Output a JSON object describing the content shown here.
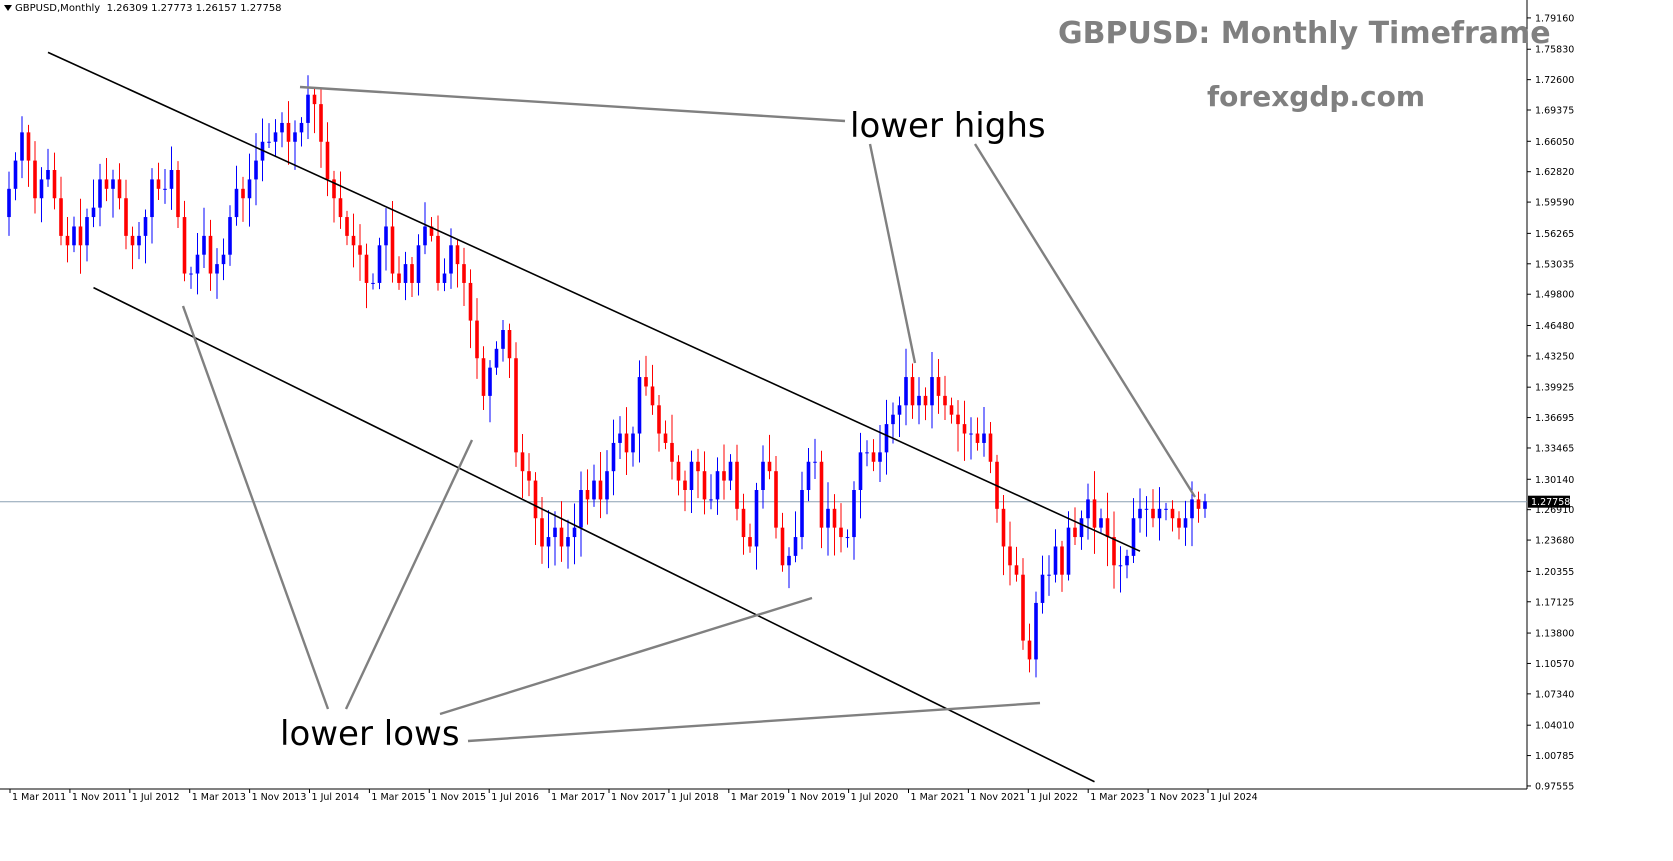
{
  "header": {
    "symbol": "GBPUSD,Monthly",
    "ohlc": "1.26309 1.27773 1.26157 1.27758"
  },
  "titles": {
    "main": "GBPUSD: Monthly Timeframe",
    "site": "forexgdp.com"
  },
  "annotations": {
    "highs": "lower highs",
    "lows": "lower lows"
  },
  "colors": {
    "bull": "#0000ff",
    "bear": "#ff0000",
    "channel": "#000000",
    "pointer": "#808080",
    "price_line": "#8ca0b4",
    "title": "#808080"
  },
  "chart_data": {
    "type": "candlestick",
    "title": "GBPUSD: Monthly Timeframe",
    "ylim": [
      0.9755,
      1.8
    ],
    "y_ticks": [
      "1.79160",
      "1.75830",
      "1.72600",
      "1.69375",
      "1.66050",
      "1.62820",
      "1.59590",
      "1.56265",
      "1.53035",
      "1.49800",
      "1.46480",
      "1.43250",
      "1.39925",
      "1.36695",
      "1.33465",
      "1.30140",
      "1.26910",
      "1.23680",
      "1.20355",
      "1.17125",
      "1.13800",
      "1.10570",
      "1.07340",
      "1.04010",
      "1.00785",
      "0.97555"
    ],
    "x_ticks": [
      "1 Mar 2011",
      "1 Nov 2011",
      "1 Jul 2012",
      "1 Mar 2013",
      "1 Nov 2013",
      "1 Jul 2014",
      "1 Mar 2015",
      "1 Nov 2015",
      "1 Jul 2016",
      "1 Mar 2017",
      "1 Nov 2017",
      "1 Jul 2018",
      "1 Mar 2019",
      "1 Nov 2019",
      "1 Jul 2020",
      "1 Mar 2021",
      "1 Nov 2021",
      "1 Jul 2022",
      "1 Mar 2023",
      "1 Nov 2023",
      "1 Jul 2024"
    ],
    "current_price": 1.27758,
    "current_price_label": "1.27758",
    "closes": [
      1.61,
      1.64,
      1.67,
      1.64,
      1.6,
      1.62,
      1.63,
      1.6,
      1.56,
      1.55,
      1.57,
      1.55,
      1.58,
      1.59,
      1.62,
      1.61,
      1.62,
      1.6,
      1.56,
      1.55,
      1.56,
      1.58,
      1.62,
      1.61,
      1.61,
      1.63,
      1.58,
      1.52,
      1.52,
      1.54,
      1.56,
      1.52,
      1.53,
      1.54,
      1.58,
      1.61,
      1.6,
      1.62,
      1.64,
      1.66,
      1.66,
      1.67,
      1.68,
      1.66,
      1.67,
      1.68,
      1.71,
      1.7,
      1.66,
      1.62,
      1.6,
      1.58,
      1.56,
      1.55,
      1.54,
      1.51,
      1.51,
      1.55,
      1.57,
      1.52,
      1.51,
      1.53,
      1.51,
      1.55,
      1.57,
      1.56,
      1.51,
      1.52,
      1.55,
      1.53,
      1.51,
      1.47,
      1.43,
      1.39,
      1.42,
      1.44,
      1.46,
      1.43,
      1.33,
      1.31,
      1.3,
      1.26,
      1.23,
      1.24,
      1.25,
      1.23,
      1.24,
      1.25,
      1.29,
      1.28,
      1.3,
      1.28,
      1.31,
      1.34,
      1.35,
      1.33,
      1.35,
      1.41,
      1.4,
      1.38,
      1.35,
      1.34,
      1.32,
      1.3,
      1.29,
      1.32,
      1.31,
      1.28,
      1.28,
      1.31,
      1.3,
      1.32,
      1.27,
      1.24,
      1.23,
      1.29,
      1.32,
      1.31,
      1.25,
      1.21,
      1.22,
      1.24,
      1.29,
      1.32,
      1.32,
      1.25,
      1.27,
      1.25,
      1.24,
      1.24,
      1.29,
      1.33,
      1.33,
      1.32,
      1.33,
      1.36,
      1.37,
      1.38,
      1.41,
      1.38,
      1.39,
      1.38,
      1.41,
      1.39,
      1.38,
      1.37,
      1.36,
      1.35,
      1.35,
      1.34,
      1.35,
      1.32,
      1.27,
      1.23,
      1.21,
      1.2,
      1.13,
      1.11,
      1.17,
      1.2,
      1.2,
      1.23,
      1.2,
      1.25,
      1.24,
      1.26,
      1.28,
      1.25,
      1.26,
      1.24,
      1.21,
      1.21,
      1.22,
      1.26,
      1.27,
      1.27,
      1.26,
      1.27,
      1.27,
      1.26,
      1.25,
      1.26,
      1.28,
      1.27,
      1.278
    ],
    "trendlines": [
      {
        "name": "upper-channel",
        "from": [
          "2011-09",
          1.755
        ],
        "to": [
          "2025-09",
          1.225
        ]
      },
      {
        "name": "lower-channel",
        "from": [
          "2012-04",
          1.505
        ],
        "to": [
          "2025-02",
          0.98
        ]
      }
    ]
  }
}
